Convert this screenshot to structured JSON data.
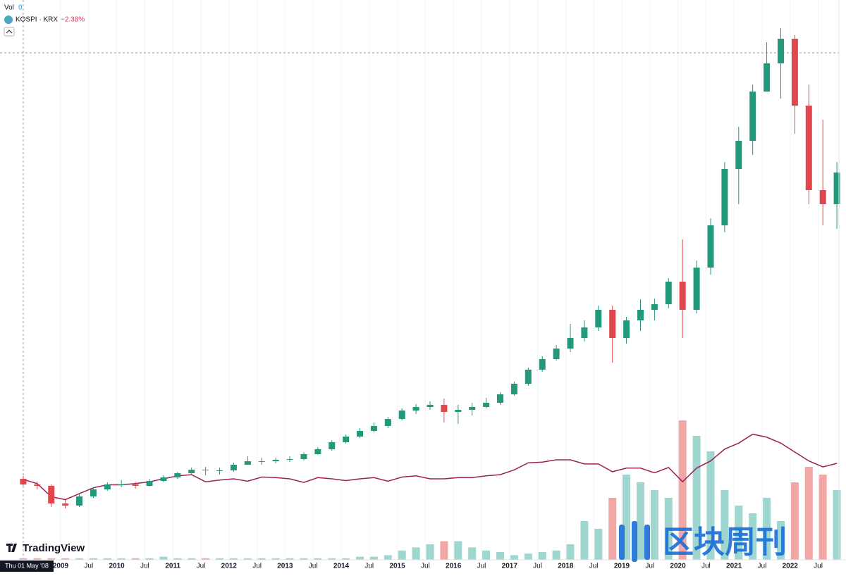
{
  "chart_data": {
    "type": "candlestick",
    "legend": {
      "volume_label": "Vol",
      "volume_value": 0,
      "compare_change": "−2.38%"
    },
    "crosshair_label": "Thu 01 May '08",
    "brand": "TradingView",
    "watermark": "区块周刊",
    "up_color": "#22997a",
    "down_color": "#e0474c",
    "up_volume_color": "#9fd6cf",
    "down_volume_color": "#f2a7a7",
    "x": [
      "2008-06",
      "2008-09",
      "2008-12",
      "2009-03",
      "2009-06",
      "2009-09",
      "2009-12",
      "2010-03",
      "2010-06",
      "2010-09",
      "2010-12",
      "2011-03",
      "2011-06",
      "2011-09",
      "2011-12",
      "2012-03",
      "2012-06",
      "2012-09",
      "2012-12",
      "2013-03",
      "2013-06",
      "2013-09",
      "2013-12",
      "2014-03",
      "2014-06",
      "2014-09",
      "2014-12",
      "2015-03",
      "2015-06",
      "2015-09",
      "2015-12",
      "2016-03",
      "2016-06",
      "2016-09",
      "2016-12",
      "2017-03",
      "2017-06",
      "2017-09",
      "2017-12",
      "2018-03",
      "2018-06",
      "2018-09",
      "2018-12",
      "2019-03",
      "2019-06",
      "2019-09",
      "2019-12",
      "2020-03",
      "2020-06",
      "2020-09",
      "2020-12",
      "2021-03",
      "2021-06",
      "2021-09",
      "2021-12",
      "2022-03",
      "2022-06",
      "2022-09",
      "2022-12"
    ],
    "open": [
      8.0,
      7.2,
      7.0,
      4.5,
      4.2,
      5.5,
      6.5,
      7.2,
      7.2,
      7.0,
      7.7,
      8.2,
      8.8,
      9.3,
      9.2,
      9.2,
      10.0,
      10.5,
      10.5,
      10.7,
      10.8,
      11.5,
      12.2,
      13.2,
      14.0,
      14.8,
      15.5,
      16.5,
      17.7,
      18.2,
      18.5,
      17.5,
      17.8,
      18.2,
      18.8,
      20.0,
      21.5,
      23.5,
      25.0,
      26.5,
      28.0,
      29.5,
      32.0,
      28.0,
      30.5,
      32.0,
      32.8,
      36.0,
      32.0,
      38.0,
      44.0,
      52.0,
      56.0,
      63.0,
      67.0,
      70.5,
      61.0,
      49.0,
      47.0
    ],
    "high": [
      8.4,
      7.6,
      7.2,
      5.0,
      5.8,
      6.8,
      7.5,
      7.8,
      7.6,
      8.0,
      8.5,
      9.0,
      9.6,
      9.7,
      9.6,
      10.3,
      11.2,
      11.0,
      11.0,
      11.2,
      11.8,
      12.5,
      13.5,
      14.3,
      15.2,
      16.0,
      16.8,
      18.0,
      18.6,
      19.0,
      19.4,
      18.5,
      18.8,
      19.5,
      20.3,
      21.8,
      23.8,
      25.4,
      27.0,
      30.0,
      30.5,
      32.6,
      32.6,
      31.0,
      33.5,
      33.6,
      36.5,
      42.0,
      39.0,
      45.0,
      53.0,
      58.0,
      64.0,
      70.0,
      72.0,
      71.0,
      64.0,
      59.0,
      53.0
    ],
    "low": [
      7.0,
      6.5,
      4.0,
      3.8,
      4.0,
      5.3,
      6.3,
      6.8,
      6.6,
      6.9,
      7.5,
      8.0,
      8.6,
      8.5,
      8.6,
      9.0,
      10.0,
      10.0,
      10.2,
      10.4,
      10.6,
      11.4,
      12.0,
      13.0,
      13.8,
      14.6,
      15.2,
      16.3,
      17.2,
      17.8,
      16.0,
      15.8,
      17.0,
      18.0,
      18.5,
      19.8,
      21.2,
      23.2,
      24.8,
      26.0,
      27.5,
      29.0,
      24.5,
      27.2,
      29.0,
      30.5,
      32.2,
      28.0,
      31.5,
      37.0,
      43.0,
      47.0,
      54.0,
      63.0,
      62.0,
      57.0,
      47.0,
      44.0,
      43.5
    ],
    "close": [
      7.2,
      7.0,
      4.5,
      4.2,
      5.5,
      6.5,
      7.2,
      7.2,
      7.0,
      7.7,
      8.2,
      8.8,
      9.3,
      9.2,
      9.2,
      10.0,
      10.5,
      10.5,
      10.7,
      10.8,
      11.5,
      12.2,
      13.2,
      14.0,
      14.8,
      15.5,
      16.5,
      17.7,
      18.2,
      18.5,
      17.5,
      17.8,
      18.2,
      18.8,
      20.0,
      21.5,
      23.5,
      25.0,
      26.5,
      28.0,
      29.5,
      32.0,
      28.0,
      30.5,
      32.0,
      32.8,
      36.0,
      32.0,
      38.0,
      44.0,
      52.0,
      56.0,
      63.0,
      67.0,
      70.5,
      61.0,
      49.0,
      47.0,
      51.5
    ],
    "volume": [
      1,
      1,
      1,
      1,
      1,
      1,
      1,
      1,
      1,
      1,
      2,
      1,
      1,
      1,
      1,
      1,
      1,
      1,
      1,
      1,
      1,
      1,
      1,
      1,
      2,
      2,
      3,
      6,
      8,
      10,
      12,
      12,
      8,
      6,
      5,
      3,
      4,
      5,
      6,
      10,
      25,
      20,
      40,
      55,
      50,
      45,
      40,
      90,
      80,
      70,
      45,
      35,
      30,
      40,
      25,
      50,
      60,
      55,
      45
    ],
    "compare": {
      "name": "KOSPI · KRX",
      "color": "#9c2058",
      "values": [
        -1,
        -8,
        -30,
        -35,
        -25,
        -15,
        -10,
        -10,
        -8,
        -5,
        0,
        5,
        7,
        -5,
        -2,
        0,
        -4,
        3,
        2,
        0,
        -6,
        2,
        0,
        -3,
        0,
        2,
        -4,
        3,
        5,
        0,
        0,
        2,
        2,
        5,
        7,
        15,
        27,
        28,
        32,
        32,
        25,
        25,
        12,
        18,
        18,
        10,
        19,
        -5,
        18,
        30,
        50,
        60,
        75,
        70,
        60,
        45,
        30,
        20,
        26
      ]
    },
    "ylim": [
      0,
      76
    ],
    "vlim": [
      0,
      100
    ],
    "y2lim": [
      -100,
      100
    ],
    "xticks": [
      {
        "value": "2009-01",
        "label": "2009"
      },
      {
        "value": "2009-07",
        "label": "Jul"
      },
      {
        "value": "2010-01",
        "label": "2010"
      },
      {
        "value": "2010-07",
        "label": "Jul"
      },
      {
        "value": "2011-01",
        "label": "2011"
      },
      {
        "value": "2011-07",
        "label": "Jul"
      },
      {
        "value": "2012-01",
        "label": "2012"
      },
      {
        "value": "2012-07",
        "label": "Jul"
      },
      {
        "value": "2013-01",
        "label": "2013"
      },
      {
        "value": "2013-07",
        "label": "Jul"
      },
      {
        "value": "2014-01",
        "label": "2014"
      },
      {
        "value": "2014-07",
        "label": "Jul"
      },
      {
        "value": "2015-01",
        "label": "2015"
      },
      {
        "value": "2015-07",
        "label": "Jul"
      },
      {
        "value": "2016-01",
        "label": "2016"
      },
      {
        "value": "2016-07",
        "label": "Jul"
      },
      {
        "value": "2017-01",
        "label": "2017"
      },
      {
        "value": "2017-07",
        "label": "Jul"
      },
      {
        "value": "2018-01",
        "label": "2018"
      },
      {
        "value": "2018-07",
        "label": "Jul"
      },
      {
        "value": "2019-01",
        "label": "2019"
      },
      {
        "value": "2019-07",
        "label": "Jul"
      },
      {
        "value": "2020-01",
        "label": "2020"
      },
      {
        "value": "2020-07",
        "label": "Jul"
      },
      {
        "value": "2021-01",
        "label": "2021"
      },
      {
        "value": "2021-07",
        "label": "Jul"
      },
      {
        "value": "2022-01",
        "label": "2022"
      },
      {
        "value": "2022-07",
        "label": "Jul"
      }
    ],
    "grid": true
  }
}
